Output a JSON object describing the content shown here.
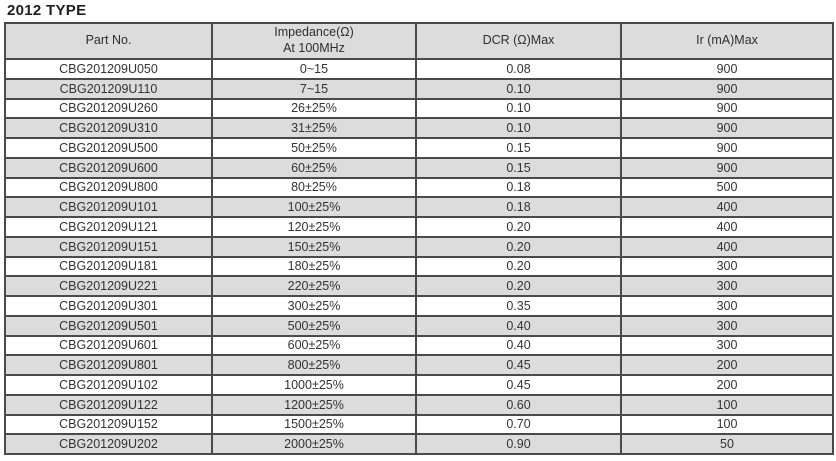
{
  "page_title": "2012 TYPE",
  "colors": {
    "stripe_gray": "#dcdcdc",
    "grid_border": "#4a4a4a",
    "outer_border": "#3a3a3a",
    "text": "#333333"
  },
  "table": {
    "header": {
      "part_no": "Part No.",
      "impedance_line1": "Impedance(Ω)",
      "impedance_line2": "At 100MHz",
      "dcr": "DCR (Ω)Max",
      "ir": "Ir (mA)Max"
    },
    "rows": [
      {
        "part": "CBG201209U050",
        "impedance": "0~15",
        "dcr": "0.08",
        "ir": "900"
      },
      {
        "part": "CBG201209U110",
        "impedance": "7~15",
        "dcr": "0.10",
        "ir": "900"
      },
      {
        "part": "CBG201209U260",
        "impedance": "26±25%",
        "dcr": "0.10",
        "ir": "900"
      },
      {
        "part": "CBG201209U310",
        "impedance": "31±25%",
        "dcr": "0.10",
        "ir": "900"
      },
      {
        "part": "CBG201209U500",
        "impedance": "50±25%",
        "dcr": "0.15",
        "ir": "900"
      },
      {
        "part": "CBG201209U600",
        "impedance": "60±25%",
        "dcr": "0.15",
        "ir": "900"
      },
      {
        "part": "CBG201209U800",
        "impedance": "80±25%",
        "dcr": "0.18",
        "ir": "500"
      },
      {
        "part": "CBG201209U101",
        "impedance": "100±25%",
        "dcr": "0.18",
        "ir": "400"
      },
      {
        "part": "CBG201209U121",
        "impedance": "120±25%",
        "dcr": "0.20",
        "ir": "400"
      },
      {
        "part": "CBG201209U151",
        "impedance": "150±25%",
        "dcr": "0.20",
        "ir": "400"
      },
      {
        "part": "CBG201209U181",
        "impedance": "180±25%",
        "dcr": "0.20",
        "ir": "300"
      },
      {
        "part": "CBG201209U221",
        "impedance": "220±25%",
        "dcr": "0.20",
        "ir": "300"
      },
      {
        "part": "CBG201209U301",
        "impedance": "300±25%",
        "dcr": "0.35",
        "ir": "300"
      },
      {
        "part": "CBG201209U501",
        "impedance": "500±25%",
        "dcr": "0.40",
        "ir": "300"
      },
      {
        "part": "CBG201209U601",
        "impedance": "600±25%",
        "dcr": "0.40",
        "ir": "300"
      },
      {
        "part": "CBG201209U801",
        "impedance": "800±25%",
        "dcr": "0.45",
        "ir": "200"
      },
      {
        "part": "CBG201209U102",
        "impedance": "1000±25%",
        "dcr": "0.45",
        "ir": "200"
      },
      {
        "part": "CBG201209U122",
        "impedance": "1200±25%",
        "dcr": "0.60",
        "ir": "100"
      },
      {
        "part": "CBG201209U152",
        "impedance": "1500±25%",
        "dcr": "0.70",
        "ir": "100"
      },
      {
        "part": "CBG201209U202",
        "impedance": "2000±25%",
        "dcr": "0.90",
        "ir": "50"
      }
    ]
  }
}
